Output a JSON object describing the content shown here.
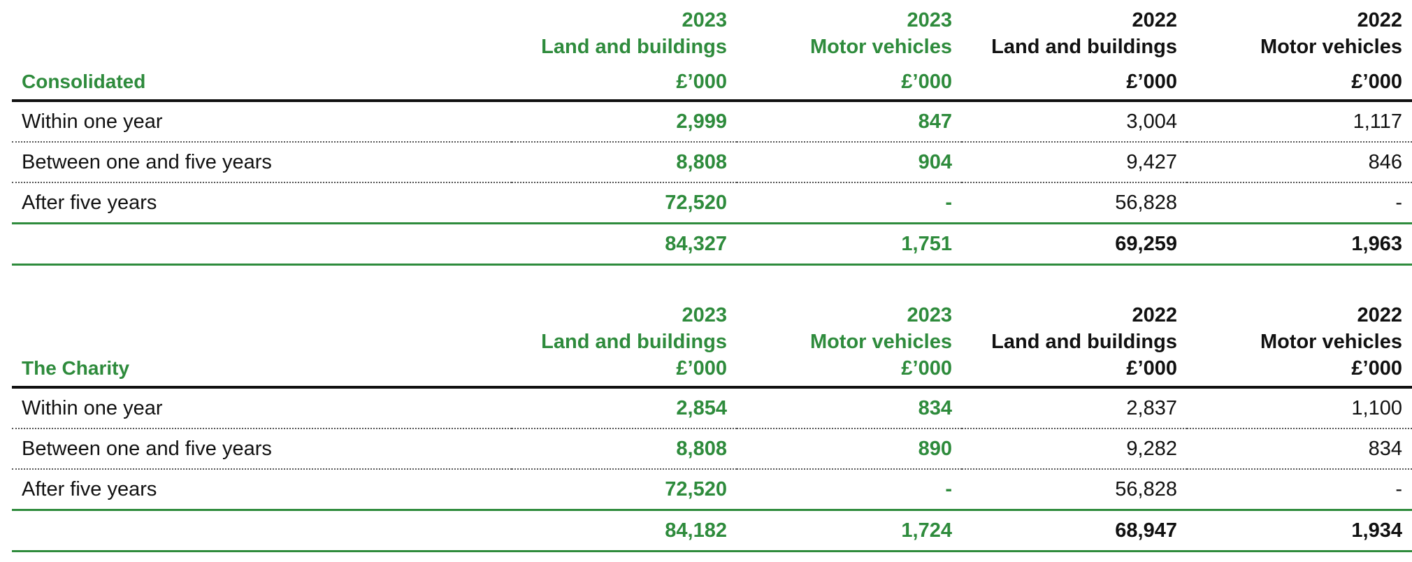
{
  "columns": [
    {
      "year": "2023",
      "category": "Land and buildings",
      "unit": "£’000",
      "style": "green"
    },
    {
      "year": "2023",
      "category": "Motor vehicles",
      "unit": "£’000",
      "style": "green"
    },
    {
      "year": "2022",
      "category": "Land and buildings",
      "unit": "£’000",
      "style": "dark"
    },
    {
      "year": "2022",
      "category": "Motor vehicles",
      "unit": "£’000",
      "style": "dark"
    }
  ],
  "sections": [
    {
      "title": "Consolidated",
      "rows": [
        {
          "label": "Within one year",
          "values": [
            "2,999",
            "847",
            "3,004",
            "1,117"
          ]
        },
        {
          "label": "Between one and five years",
          "values": [
            "8,808",
            "904",
            "9,427",
            "846"
          ]
        },
        {
          "label": "After five years",
          "values": [
            "72,520",
            "-",
            "56,828",
            "-"
          ]
        }
      ],
      "total": {
        "label": "",
        "values": [
          "84,327",
          "1,751",
          "69,259",
          "1,963"
        ]
      }
    },
    {
      "title": "The Charity",
      "rows": [
        {
          "label": "Within one year",
          "values": [
            "2,854",
            "834",
            "2,837",
            "1,100"
          ]
        },
        {
          "label": "Between one and five years",
          "values": [
            "8,808",
            "890",
            "9,282",
            "834"
          ]
        },
        {
          "label": "After five years",
          "values": [
            "72,520",
            "-",
            "56,828",
            "-"
          ]
        }
      ],
      "total": {
        "label": "",
        "values": [
          "84,182",
          "1,724",
          "68,947",
          "1,934"
        ]
      }
    }
  ],
  "colors": {
    "accent_green": "#2e8b3c",
    "text_dark": "#111111",
    "rule_dark": "#111111"
  }
}
